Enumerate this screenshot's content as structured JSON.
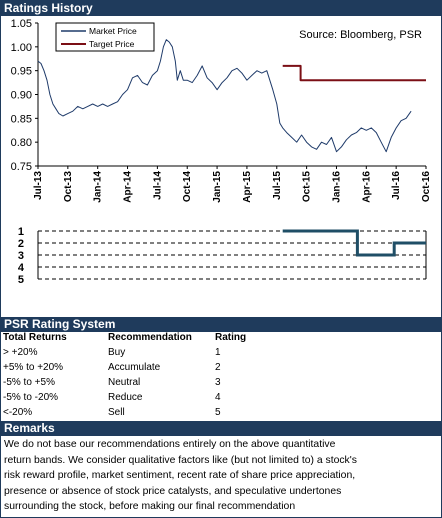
{
  "header": {
    "title": "Ratings History"
  },
  "chart_data": [
    {
      "type": "line",
      "title": "",
      "source": "Source: Bloomberg, PSR",
      "legend": {
        "placement": "top-left",
        "items": [
          "Market Price",
          "Target Price"
        ]
      },
      "x_ticks": [
        "Jul-13",
        "Oct-13",
        "Jan-14",
        "Apr-14",
        "Jul-14",
        "Oct-14",
        "Jan-15",
        "Apr-15",
        "Jul-15",
        "Oct-15",
        "Jan-16",
        "Apr-16",
        "Jul-16",
        "Oct-16"
      ],
      "ylim": [
        0.75,
        1.05
      ],
      "y_ticks": [
        "0.75",
        "0.80",
        "0.85",
        "0.90",
        "0.95",
        "1.00",
        "1.05"
      ],
      "grid": false,
      "series": [
        {
          "name": "Market Price",
          "color": "#1f3b6a",
          "x_months": [
            0,
            0.3,
            0.6,
            0.9,
            1.2,
            1.5,
            1.8,
            2.1,
            2.5,
            3,
            3.5,
            4,
            4.5,
            5,
            5.5,
            6,
            6.5,
            7,
            7.5,
            8,
            8.5,
            9,
            9.5,
            10,
            10.5,
            11,
            11.5,
            12,
            12.3,
            12.6,
            12.9,
            13.2,
            13.5,
            13.8,
            14,
            14.3,
            14.6,
            15,
            15.5,
            16,
            16.5,
            17,
            17.5,
            18,
            18.5,
            19,
            19.5,
            20,
            20.5,
            21,
            21.5,
            22,
            22.5,
            23,
            23.3,
            23.6,
            24,
            24.3,
            24.6,
            25,
            25.5,
            26,
            26.5,
            27,
            27.5,
            28,
            28.5,
            29,
            29.5,
            30,
            30.5,
            31,
            31.5,
            32,
            32.5,
            33,
            33.5,
            34,
            34.5,
            35,
            35.5,
            36,
            36.5,
            37,
            37.5
          ],
          "values": [
            0.97,
            0.965,
            0.95,
            0.93,
            0.9,
            0.88,
            0.87,
            0.86,
            0.855,
            0.86,
            0.865,
            0.875,
            0.87,
            0.875,
            0.88,
            0.875,
            0.88,
            0.875,
            0.88,
            0.885,
            0.9,
            0.91,
            0.935,
            0.94,
            0.925,
            0.92,
            0.94,
            0.95,
            0.97,
            1.0,
            1.015,
            1.01,
            1.0,
            0.97,
            0.93,
            0.95,
            0.93,
            0.93,
            0.925,
            0.94,
            0.96,
            0.935,
            0.925,
            0.91,
            0.925,
            0.935,
            0.95,
            0.955,
            0.945,
            0.93,
            0.94,
            0.95,
            0.945,
            0.95,
            0.93,
            0.91,
            0.88,
            0.84,
            0.83,
            0.82,
            0.81,
            0.8,
            0.815,
            0.8,
            0.79,
            0.785,
            0.8,
            0.795,
            0.81,
            0.78,
            0.79,
            0.805,
            0.815,
            0.82,
            0.83,
            0.825,
            0.83,
            0.82,
            0.8,
            0.78,
            0.81,
            0.83,
            0.845,
            0.85,
            0.865
          ]
        },
        {
          "name": "Target Price",
          "color": "#7b0f15",
          "x_months": [
            24.6,
            26.4,
            26.4,
            39
          ],
          "values": [
            0.96,
            0.96,
            0.93,
            0.93
          ]
        }
      ]
    },
    {
      "type": "line",
      "title": "",
      "ylim": [
        1,
        5
      ],
      "y_ticks": [
        "1",
        "2",
        "3",
        "4",
        "5"
      ],
      "grid": true,
      "series": [
        {
          "name": "",
          "color": "#1f4e66",
          "x_months": [
            24.6,
            32.1,
            32.1,
            35.8,
            35.8,
            39
          ],
          "values": [
            1,
            1,
            3,
            3,
            2,
            2
          ]
        }
      ]
    }
  ],
  "rating_system": {
    "title": "PSR Rating System",
    "headers": [
      "Total Returns",
      "Recommendation",
      "Rating"
    ],
    "rows": [
      [
        "> +20%",
        "Buy",
        "1"
      ],
      [
        "+5% to +20%",
        "Accumulate",
        "2"
      ],
      [
        "-5% to +5%",
        "Neutral",
        "3"
      ],
      [
        "-5% to -20%",
        "Reduce",
        "4"
      ],
      [
        "<-20%",
        "Sell",
        "5"
      ]
    ]
  },
  "remarks": {
    "title": "Remarks",
    "lines": [
      "We do not base our recommendations entirely on the  above quantitative",
      "return bands.  We consider qualitative factors like (but not limited to) a stock's",
      "risk reward profile, market sentiment, recent rate of share price appreciation,",
      "presence or absence of stock price catalysts, and speculative undertones",
      "surrounding the stock, before making our final recommendation"
    ]
  }
}
